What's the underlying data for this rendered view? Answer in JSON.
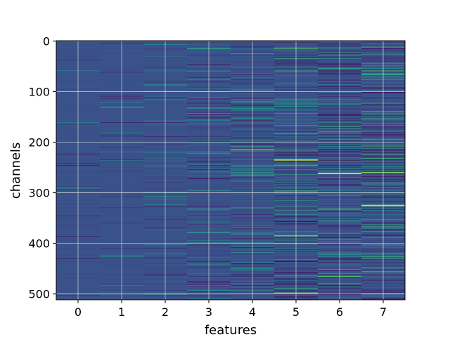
{
  "chart_data": {
    "type": "heatmap",
    "title": "",
    "xlabel": "features",
    "ylabel": "channels",
    "x_categories": [
      "0",
      "1",
      "2",
      "3",
      "4",
      "5",
      "6",
      "7"
    ],
    "x_range": [
      -0.5,
      7.5
    ],
    "y_range": [
      511.5,
      -0.5
    ],
    "y_ticks": [
      0,
      100,
      200,
      300,
      400,
      500
    ],
    "y_tick_labels": [
      "0",
      "100",
      "200",
      "300",
      "400",
      "500"
    ],
    "rows": 512,
    "grid": true,
    "colormap": "viridis",
    "colors": {
      "background": "#3b528b",
      "grid": "#d9d9d9"
    },
    "column_activity": [
      0.05,
      0.08,
      0.14,
      0.22,
      0.32,
      0.42,
      0.5,
      0.55
    ],
    "highlights": [
      {
        "feature": 2,
        "channel": 500,
        "value": 0.55
      },
      {
        "feature": 3,
        "channel": 15,
        "value": 0.55
      },
      {
        "feature": 4,
        "channel": 215,
        "value": 0.75
      },
      {
        "feature": 4,
        "channel": 265,
        "value": 0.55
      },
      {
        "feature": 5,
        "channel": 14,
        "value": 0.7
      },
      {
        "feature": 5,
        "channel": 235,
        "value": 0.95
      },
      {
        "feature": 5,
        "channel": 385,
        "value": 0.75
      },
      {
        "feature": 5,
        "channel": 498,
        "value": 0.7
      },
      {
        "feature": 6,
        "channel": 262,
        "value": 1.0
      },
      {
        "feature": 6,
        "channel": 465,
        "value": 0.7
      },
      {
        "feature": 7,
        "channel": 260,
        "value": 0.8
      },
      {
        "feature": 7,
        "channel": 325,
        "value": 0.95
      },
      {
        "feature": 7,
        "channel": 65,
        "value": 0.6
      },
      {
        "feature": 7,
        "channel": 140,
        "value": 0.6
      }
    ]
  }
}
